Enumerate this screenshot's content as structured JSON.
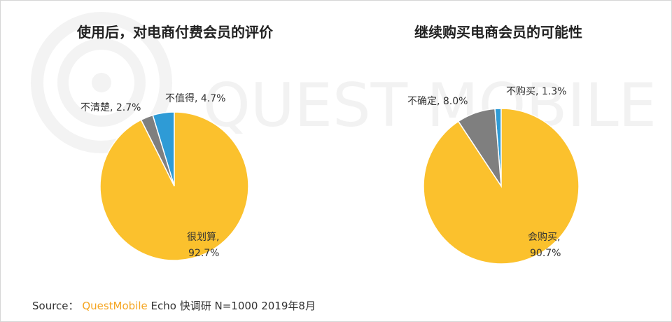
{
  "watermark": "QUEST MOBILE",
  "chart_data": [
    {
      "type": "pie",
      "title": "使用后，对电商付费会员的评价",
      "slices": [
        {
          "label": "很划算,",
          "value_label": "92.7%",
          "value": 92.7,
          "color": "#fbc12d"
        },
        {
          "label": "不清楚, 2.7%",
          "value": 2.7,
          "color": "#7f7f7f"
        },
        {
          "label": "不值得, 4.7%",
          "value": 4.7,
          "color": "#2e9bd6"
        }
      ]
    },
    {
      "type": "pie",
      "title": "继续购买电商会员的可能性",
      "slices": [
        {
          "label": "会购买,",
          "value_label": "90.7%",
          "value": 90.7,
          "color": "#fbc12d"
        },
        {
          "label": "不确定, 8.0%",
          "value": 8.0,
          "color": "#7f7f7f"
        },
        {
          "label": "不购买, 1.3%",
          "value": 1.3,
          "color": "#2e9bd6"
        }
      ]
    }
  ],
  "source": {
    "prefix": "Source：",
    "brand": "QuestMobile",
    "rest": "Echo 快调研 N=1000 2019年8月"
  }
}
